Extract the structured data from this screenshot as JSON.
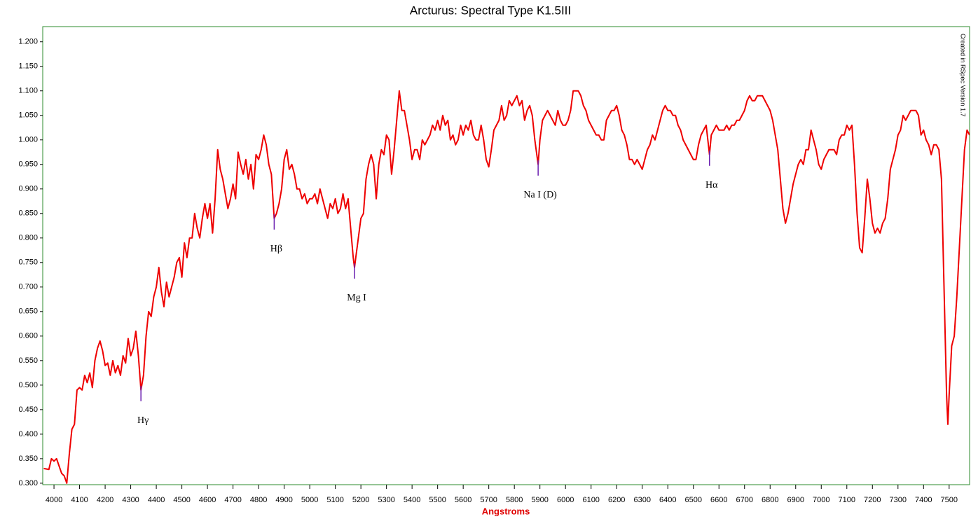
{
  "chart_data": {
    "type": "line",
    "title": "Arcturus: Spectral Type K1.5III",
    "x_label": "Angstroms",
    "side_note": "Created in RSpec Version 1.7",
    "xlim": [
      3956,
      7580
    ],
    "ylim": [
      0.297,
      1.231
    ],
    "xticks": [
      4000,
      4100,
      4200,
      4300,
      4400,
      4500,
      4600,
      4700,
      4800,
      4900,
      5000,
      5100,
      5200,
      5300,
      5400,
      5500,
      5600,
      5700,
      5800,
      5900,
      6000,
      6100,
      6200,
      6300,
      6400,
      6500,
      6600,
      6700,
      6800,
      6900,
      7000,
      7100,
      7200,
      7300,
      7400,
      7500
    ],
    "yticks": [
      {
        "value": 0.3,
        "label": "0.300"
      },
      {
        "value": 0.35,
        "label": "0.350"
      },
      {
        "value": 0.4,
        "label": "0.400"
      },
      {
        "value": 0.45,
        "label": "0.450"
      },
      {
        "value": 0.5,
        "label": "0.500"
      },
      {
        "value": 0.55,
        "label": "0.550"
      },
      {
        "value": 0.6,
        "label": "0.600"
      },
      {
        "value": 0.65,
        "label": "0.650"
      },
      {
        "value": 0.7,
        "label": "0.700"
      },
      {
        "value": 0.75,
        "label": "0.750"
      },
      {
        "value": 0.8,
        "label": "0.800"
      },
      {
        "value": 0.85,
        "label": "0.850"
      },
      {
        "value": 0.9,
        "label": "0.900"
      },
      {
        "value": 0.95,
        "label": "0.950"
      },
      {
        "value": 1.0,
        "label": "1.000"
      },
      {
        "value": 1.05,
        "label": "1.050"
      },
      {
        "value": 1.1,
        "label": "1.100"
      },
      {
        "value": 1.15,
        "label": "1.150"
      },
      {
        "value": 1.2,
        "label": "1.200"
      }
    ],
    "annotations": [
      {
        "text": "Hγ",
        "x": 4340
      },
      {
        "text": "Hβ",
        "x": 4861
      },
      {
        "text": "Mg I",
        "x": 5175
      },
      {
        "text": "Na I (D)",
        "x": 5893
      },
      {
        "text": "Hα",
        "x": 6563
      }
    ],
    "x": [
      3960,
      3980,
      3990,
      4000,
      4010,
      4020,
      4030,
      4040,
      4050,
      4055,
      4060,
      4070,
      4080,
      4090,
      4100,
      4110,
      4120,
      4130,
      4140,
      4150,
      4160,
      4170,
      4180,
      4190,
      4200,
      4210,
      4220,
      4230,
      4240,
      4250,
      4260,
      4270,
      4280,
      4290,
      4300,
      4310,
      4320,
      4330,
      4340,
      4350,
      4360,
      4370,
      4380,
      4390,
      4400,
      4410,
      4420,
      4430,
      4440,
      4450,
      4460,
      4470,
      4480,
      4490,
      4500,
      4510,
      4520,
      4530,
      4540,
      4550,
      4560,
      4570,
      4580,
      4590,
      4600,
      4610,
      4620,
      4630,
      4640,
      4650,
      4660,
      4670,
      4680,
      4690,
      4700,
      4710,
      4720,
      4730,
      4740,
      4750,
      4760,
      4770,
      4780,
      4790,
      4800,
      4810,
      4820,
      4830,
      4840,
      4850,
      4861,
      4870,
      4880,
      4890,
      4900,
      4910,
      4920,
      4930,
      4940,
      4950,
      4960,
      4970,
      4980,
      4990,
      5000,
      5010,
      5020,
      5030,
      5040,
      5050,
      5060,
      5070,
      5080,
      5090,
      5100,
      5110,
      5120,
      5130,
      5140,
      5150,
      5160,
      5170,
      5175,
      5180,
      5190,
      5200,
      5210,
      5220,
      5230,
      5240,
      5250,
      5260,
      5270,
      5280,
      5290,
      5300,
      5310,
      5320,
      5330,
      5340,
      5350,
      5360,
      5370,
      5380,
      5390,
      5400,
      5410,
      5420,
      5430,
      5440,
      5450,
      5460,
      5470,
      5480,
      5490,
      5500,
      5510,
      5520,
      5530,
      5540,
      5550,
      5560,
      5570,
      5580,
      5590,
      5600,
      5610,
      5620,
      5630,
      5640,
      5650,
      5660,
      5670,
      5680,
      5690,
      5700,
      5710,
      5720,
      5730,
      5740,
      5750,
      5760,
      5770,
      5780,
      5790,
      5800,
      5810,
      5820,
      5830,
      5840,
      5850,
      5860,
      5870,
      5880,
      5893,
      5900,
      5910,
      5920,
      5930,
      5940,
      5950,
      5960,
      5970,
      5980,
      5990,
      6000,
      6010,
      6020,
      6030,
      6040,
      6050,
      6060,
      6070,
      6080,
      6090,
      6100,
      6110,
      6120,
      6130,
      6140,
      6150,
      6160,
      6170,
      6180,
      6190,
      6200,
      6210,
      6220,
      6230,
      6240,
      6250,
      6260,
      6270,
      6280,
      6290,
      6300,
      6310,
      6320,
      6330,
      6340,
      6350,
      6360,
      6370,
      6380,
      6390,
      6400,
      6410,
      6420,
      6430,
      6440,
      6450,
      6460,
      6470,
      6480,
      6490,
      6500,
      6510,
      6520,
      6530,
      6540,
      6550,
      6563,
      6570,
      6580,
      6590,
      6600,
      6610,
      6620,
      6630,
      6640,
      6650,
      6660,
      6670,
      6680,
      6690,
      6700,
      6710,
      6720,
      6730,
      6740,
      6750,
      6760,
      6770,
      6780,
      6790,
      6800,
      6810,
      6820,
      6830,
      6840,
      6850,
      6860,
      6870,
      6880,
      6890,
      6900,
      6910,
      6920,
      6930,
      6940,
      6950,
      6960,
      6970,
      6980,
      6990,
      7000,
      7010,
      7020,
      7030,
      7040,
      7050,
      7060,
      7070,
      7080,
      7090,
      7100,
      7110,
      7120,
      7130,
      7140,
      7150,
      7160,
      7170,
      7180,
      7190,
      7200,
      7210,
      7220,
      7230,
      7240,
      7250,
      7260,
      7270,
      7280,
      7290,
      7300,
      7310,
      7320,
      7330,
      7340,
      7350,
      7360,
      7370,
      7380,
      7390,
      7400,
      7410,
      7420,
      7430,
      7440,
      7450,
      7460,
      7470,
      7480,
      7490,
      7495,
      7500,
      7510,
      7520,
      7530,
      7540,
      7550,
      7560,
      7570,
      7580
    ],
    "series": [
      {
        "color": "#ee0000",
        "values": [
          0.33,
          0.328,
          0.35,
          0.345,
          0.35,
          0.335,
          0.32,
          0.315,
          0.3,
          0.33,
          0.36,
          0.41,
          0.42,
          0.49,
          0.495,
          0.49,
          0.52,
          0.505,
          0.525,
          0.495,
          0.55,
          0.575,
          0.59,
          0.57,
          0.54,
          0.545,
          0.52,
          0.55,
          0.525,
          0.54,
          0.52,
          0.56,
          0.545,
          0.595,
          0.56,
          0.575,
          0.61,
          0.56,
          0.49,
          0.52,
          0.6,
          0.65,
          0.64,
          0.68,
          0.7,
          0.74,
          0.69,
          0.66,
          0.71,
          0.68,
          0.7,
          0.72,
          0.75,
          0.76,
          0.72,
          0.79,
          0.76,
          0.8,
          0.8,
          0.85,
          0.82,
          0.8,
          0.84,
          0.87,
          0.84,
          0.87,
          0.81,
          0.88,
          0.98,
          0.94,
          0.92,
          0.89,
          0.86,
          0.88,
          0.91,
          0.88,
          0.975,
          0.95,
          0.93,
          0.96,
          0.92,
          0.95,
          0.9,
          0.97,
          0.96,
          0.98,
          1.01,
          0.99,
          0.95,
          0.93,
          0.84,
          0.85,
          0.87,
          0.9,
          0.96,
          0.98,
          0.94,
          0.95,
          0.93,
          0.9,
          0.9,
          0.88,
          0.89,
          0.87,
          0.88,
          0.88,
          0.89,
          0.87,
          0.9,
          0.88,
          0.86,
          0.84,
          0.87,
          0.86,
          0.88,
          0.85,
          0.86,
          0.89,
          0.86,
          0.88,
          0.82,
          0.76,
          0.74,
          0.76,
          0.8,
          0.84,
          0.85,
          0.92,
          0.95,
          0.97,
          0.95,
          0.88,
          0.95,
          0.98,
          0.97,
          1.01,
          1.0,
          0.93,
          0.98,
          1.04,
          1.1,
          1.06,
          1.06,
          1.03,
          1.0,
          0.96,
          0.98,
          0.98,
          0.96,
          1.0,
          0.99,
          1.0,
          1.01,
          1.03,
          1.02,
          1.04,
          1.02,
          1.05,
          1.03,
          1.04,
          1.0,
          1.01,
          0.99,
          1.0,
          1.03,
          1.01,
          1.03,
          1.02,
          1.04,
          1.01,
          1.0,
          1.0,
          1.03,
          1.0,
          0.96,
          0.945,
          0.98,
          1.02,
          1.03,
          1.04,
          1.07,
          1.04,
          1.05,
          1.08,
          1.07,
          1.08,
          1.09,
          1.07,
          1.08,
          1.04,
          1.06,
          1.07,
          1.05,
          1.0,
          0.95,
          1.0,
          1.04,
          1.05,
          1.06,
          1.05,
          1.04,
          1.03,
          1.06,
          1.04,
          1.03,
          1.03,
          1.04,
          1.06,
          1.1,
          1.1,
          1.1,
          1.09,
          1.07,
          1.06,
          1.04,
          1.03,
          1.02,
          1.01,
          1.01,
          1.0,
          1.0,
          1.04,
          1.05,
          1.06,
          1.06,
          1.07,
          1.05,
          1.02,
          1.01,
          0.99,
          0.96,
          0.96,
          0.95,
          0.96,
          0.95,
          0.94,
          0.96,
          0.98,
          0.99,
          1.01,
          1.0,
          1.02,
          1.04,
          1.06,
          1.07,
          1.06,
          1.06,
          1.05,
          1.05,
          1.03,
          1.02,
          1.0,
          0.99,
          0.98,
          0.97,
          0.96,
          0.96,
          0.99,
          1.01,
          1.02,
          1.03,
          0.97,
          1.01,
          1.02,
          1.03,
          1.02,
          1.02,
          1.02,
          1.03,
          1.02,
          1.03,
          1.03,
          1.04,
          1.04,
          1.05,
          1.06,
          1.08,
          1.09,
          1.08,
          1.08,
          1.09,
          1.09,
          1.09,
          1.08,
          1.07,
          1.06,
          1.04,
          1.01,
          0.98,
          0.92,
          0.86,
          0.83,
          0.85,
          0.88,
          0.91,
          0.93,
          0.95,
          0.96,
          0.95,
          0.98,
          0.98,
          1.02,
          1.0,
          0.98,
          0.95,
          0.94,
          0.96,
          0.97,
          0.98,
          0.98,
          0.98,
          0.97,
          1.0,
          1.01,
          1.01,
          1.03,
          1.02,
          1.03,
          0.95,
          0.85,
          0.78,
          0.77,
          0.84,
          0.92,
          0.88,
          0.83,
          0.81,
          0.82,
          0.81,
          0.83,
          0.84,
          0.88,
          0.94,
          0.96,
          0.98,
          1.01,
          1.02,
          1.05,
          1.04,
          1.05,
          1.06,
          1.06,
          1.06,
          1.05,
          1.01,
          1.02,
          1.0,
          0.99,
          0.97,
          0.99,
          0.99,
          0.98,
          0.92,
          0.7,
          0.48,
          0.42,
          0.48,
          0.58,
          0.6,
          0.68,
          0.78,
          0.88,
          0.98,
          1.02,
          1.01
        ]
      }
    ],
    "marker_color": "#6a1fb0",
    "frame_color": "#2e8b2e"
  }
}
